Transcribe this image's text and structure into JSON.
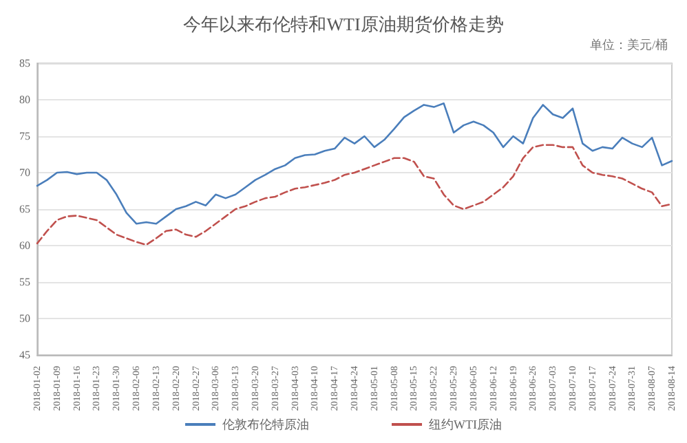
{
  "chart_data": {
    "type": "line",
    "title": "今年以来布伦特和WTI原油期货价格走势",
    "annotations": [
      "单位：美元/桶"
    ],
    "categories": [
      "2018-01-02",
      null,
      "2018-01-09",
      null,
      "2018-01-16",
      null,
      "2018-01-23",
      null,
      "2018-01-30",
      null,
      "2018-02-06",
      null,
      "2018-02-13",
      null,
      "2018-02-20",
      null,
      "2018-02-27",
      null,
      "2018-03-06",
      null,
      "2018-03-13",
      null,
      "2018-03-20",
      null,
      "2018-03-27",
      null,
      "2018-04-03",
      null,
      "2018-04-10",
      null,
      "2018-04-17",
      null,
      "2018-04-24",
      null,
      "2018-05-01",
      null,
      "2018-05-08",
      null,
      "2018-05-15",
      null,
      "2018-05-22",
      null,
      "2018-05-29",
      null,
      "2018-06-05",
      null,
      "2018-06-12",
      null,
      "2018-06-19",
      null,
      "2018-06-26",
      null,
      "2018-07-03",
      null,
      "2018-07-10",
      null,
      "2018-07-17",
      null,
      "2018-07-24",
      null,
      "2018-07-31",
      null,
      "2018-08-07",
      null,
      "2018-08-14"
    ],
    "series": [
      {
        "name": "伦敦布伦特原油",
        "color": "#4a7ebb",
        "line_style": "solid",
        "values": [
          68.2,
          69,
          70,
          70.1,
          69.8,
          70,
          70,
          69,
          67,
          64.5,
          63,
          63.2,
          63,
          64,
          65,
          65.4,
          66,
          65.5,
          67,
          66.5,
          67,
          68,
          69,
          69.7,
          70.5,
          71,
          72,
          72.4,
          72.5,
          73,
          73.3,
          74.8,
          74,
          75,
          73.5,
          74.5,
          76,
          77.6,
          78.5,
          79.3,
          79,
          79.5,
          75.5,
          76.5,
          77,
          76.5,
          75.5,
          73.5,
          75,
          74,
          77.5,
          79.3,
          78,
          77.5,
          78.8,
          74,
          73,
          73.5,
          73.3,
          74.8,
          74,
          73.5,
          74.8,
          71,
          71.6
        ]
      },
      {
        "name": "纽约WTI原油",
        "color": "#c0504d",
        "line_style": "dashed",
        "values": [
          60.3,
          62,
          63.5,
          64,
          64.1,
          63.8,
          63.5,
          62.5,
          61.5,
          61,
          60.5,
          60.1,
          61,
          62,
          62.2,
          61.5,
          61.2,
          62,
          63,
          64,
          65,
          65.4,
          66,
          66.5,
          66.7,
          67.3,
          67.8,
          68,
          68.3,
          68.6,
          69,
          69.7,
          70,
          70.5,
          71,
          71.5,
          72,
          72,
          71.5,
          69.5,
          69.2,
          67,
          65.5,
          65,
          65.5,
          66,
          67,
          68,
          69.5,
          72,
          73.5,
          73.8,
          73.8,
          73.5,
          73.5,
          71,
          70,
          69.7,
          69.5,
          69.2,
          68.5,
          67.8,
          67.3,
          65.4,
          65.7
        ]
      }
    ],
    "ylim": [
      45,
      85
    ],
    "yticks": [
      45,
      50,
      55,
      60,
      65,
      70,
      75,
      80,
      85
    ],
    "grid": "y",
    "legend": "bottom",
    "marker": "none"
  }
}
